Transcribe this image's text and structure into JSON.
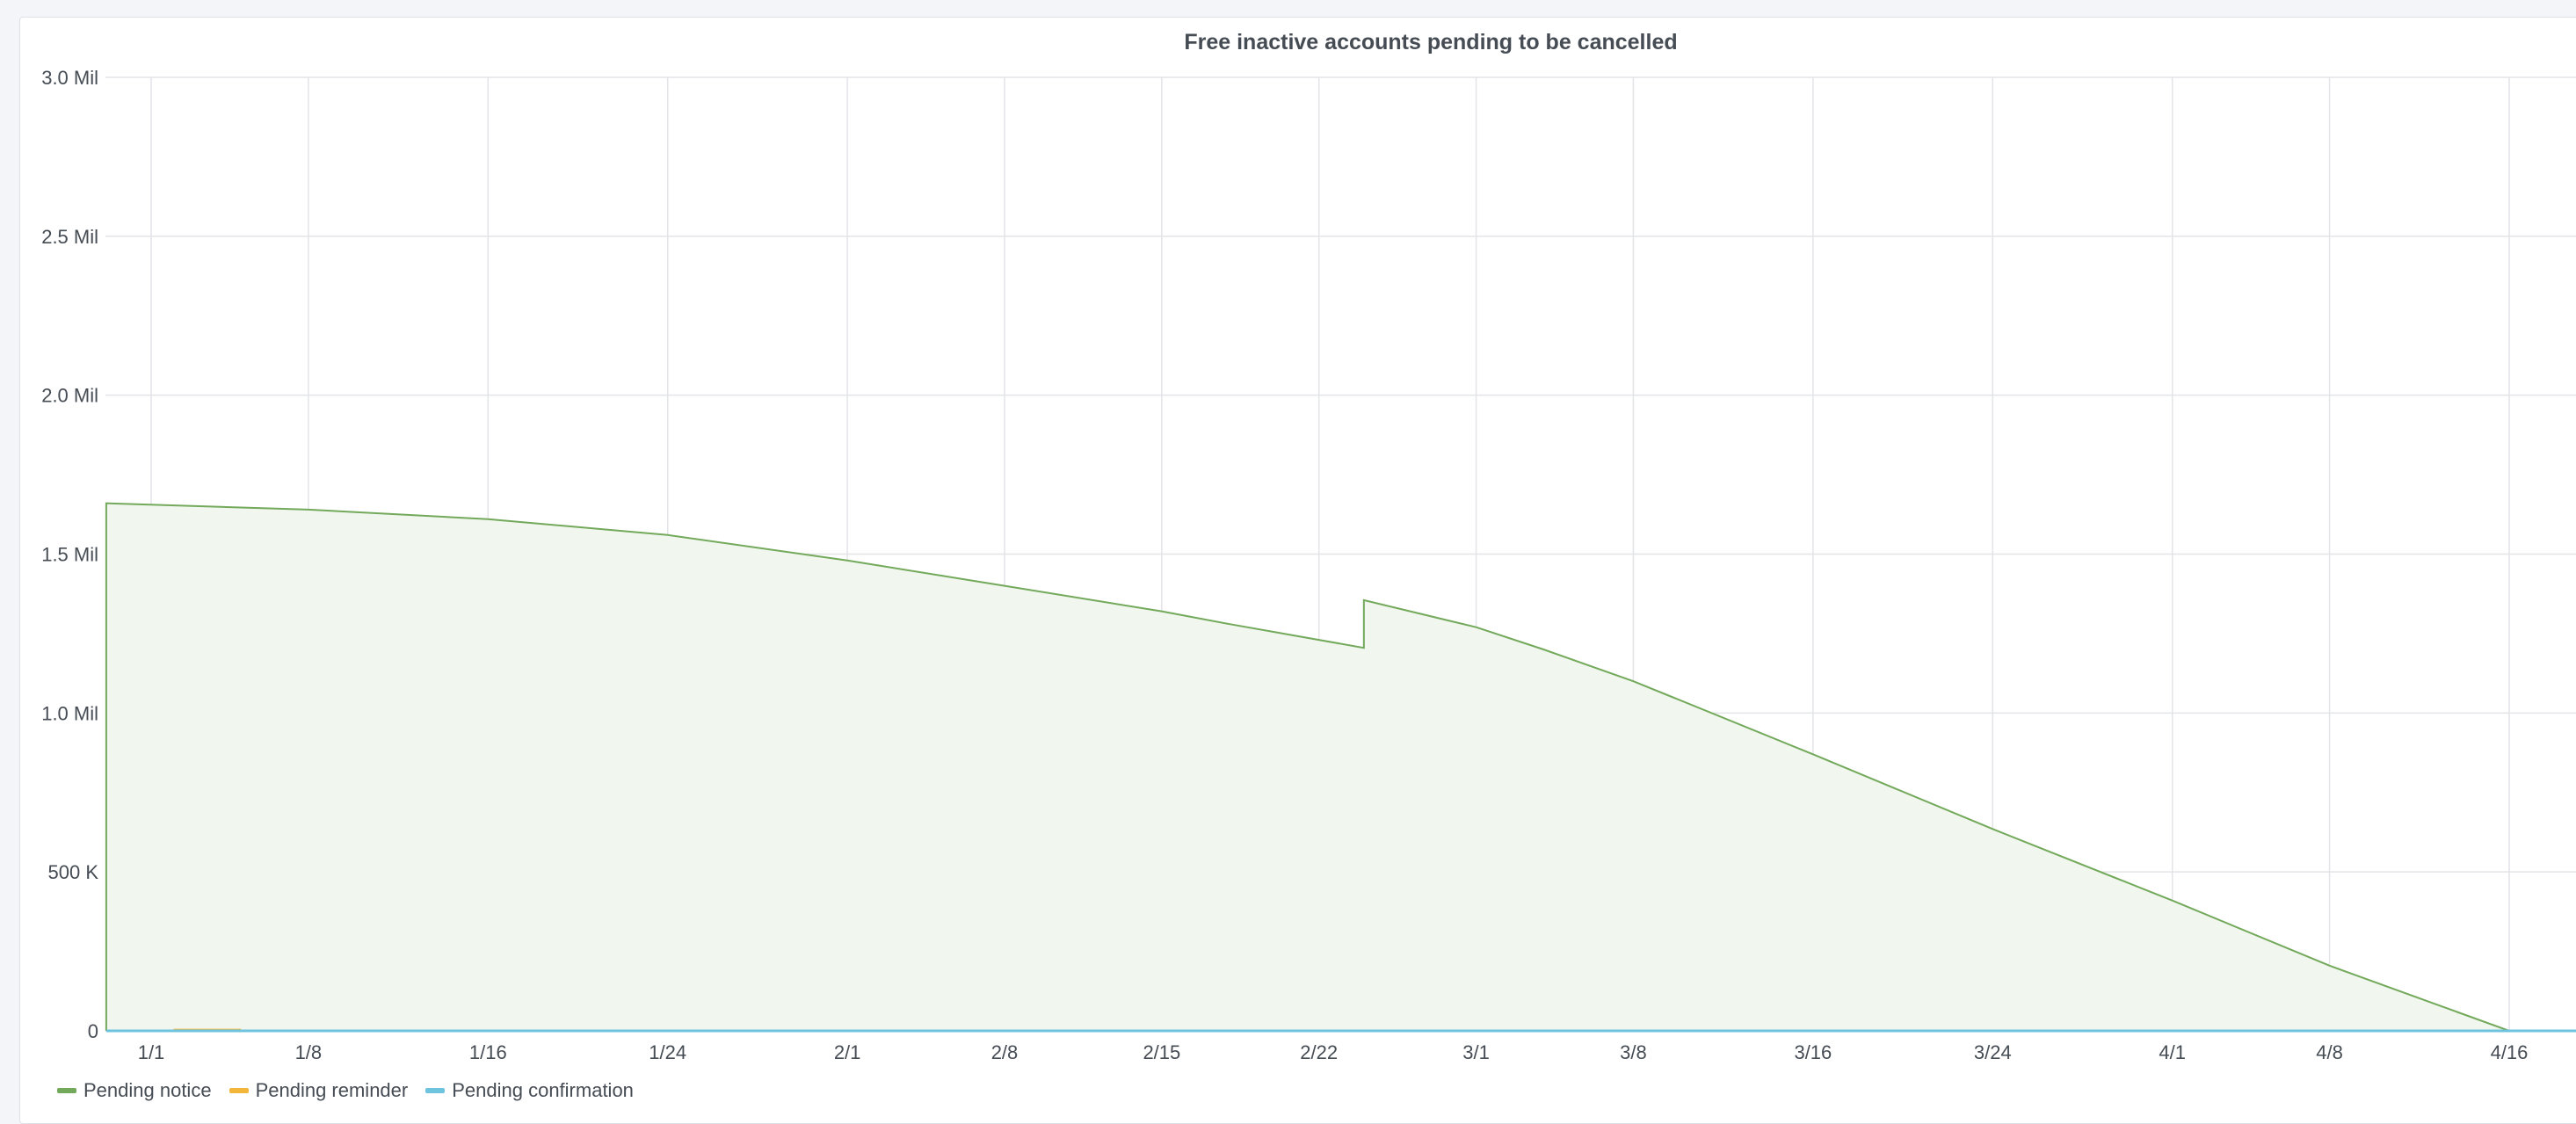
{
  "colors": {
    "notice": "#73a95b",
    "notice_fill": "#f1f6ee",
    "reminder": "#f2b73a",
    "confirmation": "#6ec3de",
    "grid": "#e3e4e8",
    "text": "#464c54"
  },
  "chart_data": {
    "type": "area",
    "title": "Free inactive accounts pending to be cancelled",
    "x_ticks": [
      "1/1",
      "1/8",
      "1/16",
      "1/24",
      "2/1",
      "2/8",
      "2/15",
      "2/22",
      "3/1",
      "3/8",
      "3/16",
      "3/24",
      "4/1",
      "4/8",
      "4/16"
    ],
    "y_ticks": [
      "0",
      "500 K",
      "1.0 Mil",
      "1.5 Mil",
      "2.0 Mil",
      "2.5 Mil",
      "3.0 Mil"
    ],
    "ylim": [
      0,
      3000000
    ],
    "grid": true,
    "legend_position": "bottom-left",
    "series": [
      {
        "name": "Pending notice",
        "color": "#73a95b",
        "fill": true,
        "points": [
          [
            "12/30",
            0
          ],
          [
            "12/30",
            1660000
          ],
          [
            "1/8",
            1640000
          ],
          [
            "1/16",
            1610000
          ],
          [
            "1/24",
            1560000
          ],
          [
            "2/1",
            1480000
          ],
          [
            "2/8",
            1400000
          ],
          [
            "2/15",
            1320000
          ],
          [
            "2/18",
            1280000
          ],
          [
            "2/24",
            1205000
          ],
          [
            "2/24",
            1355000
          ],
          [
            "3/1",
            1270000
          ],
          [
            "3/4",
            1200000
          ],
          [
            "3/8",
            1100000
          ],
          [
            "3/16",
            870000
          ],
          [
            "3/24",
            635000
          ],
          [
            "4/1",
            410000
          ],
          [
            "4/8",
            205000
          ],
          [
            "4/16",
            0
          ],
          [
            "4/19",
            0
          ]
        ]
      },
      {
        "name": "Pending reminder",
        "color": "#f2b73a",
        "fill": false,
        "points": [
          [
            "1/2",
            2500
          ],
          [
            "1/5",
            2500
          ]
        ]
      },
      {
        "name": "Pending confirmation",
        "color": "#6ec3de",
        "fill": false,
        "points": [
          [
            "12/30",
            0
          ],
          [
            "4/19",
            0
          ]
        ]
      }
    ]
  }
}
